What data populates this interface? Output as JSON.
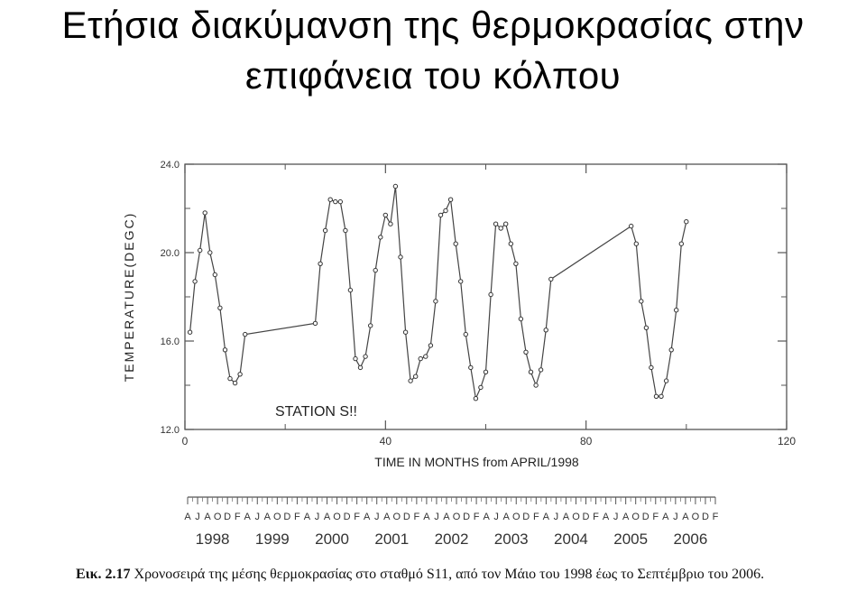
{
  "title": {
    "line1": "Ετήσια διακύμανση της θερμοκρασίας στην",
    "line2": "επιφάνεια του κόλπου"
  },
  "chart_data": {
    "type": "line",
    "annotation": "STATION S!!",
    "xlabel": "TIME IN MONTHS from APRIL/1998",
    "ylabel": "TEMPERATURE(DEGC)",
    "xlim": [
      0,
      120
    ],
    "ylim": [
      12,
      24
    ],
    "x_ticks": [
      "0",
      "40",
      "80",
      "120"
    ],
    "y_ticks": [
      "12.0",
      "16.0",
      "20.0",
      "24.0"
    ],
    "grid": false,
    "points": [
      [
        1,
        16.4
      ],
      [
        2,
        18.7
      ],
      [
        3,
        20.1
      ],
      [
        4,
        21.8
      ],
      [
        5,
        20.0
      ],
      [
        6,
        19.0
      ],
      [
        7,
        17.5
      ],
      [
        8,
        15.6
      ],
      [
        9,
        14.3
      ],
      [
        10,
        14.1
      ],
      [
        11,
        14.5
      ],
      [
        12,
        16.3
      ],
      [
        26,
        16.8
      ],
      [
        27,
        19.5
      ],
      [
        28,
        21.0
      ],
      [
        29,
        22.4
      ],
      [
        30,
        22.3
      ],
      [
        31,
        22.3
      ],
      [
        32,
        21.0
      ],
      [
        33,
        18.3
      ],
      [
        34,
        15.2
      ],
      [
        35,
        14.8
      ],
      [
        36,
        15.3
      ],
      [
        37,
        16.7
      ],
      [
        38,
        19.2
      ],
      [
        39,
        20.7
      ],
      [
        40,
        21.7
      ],
      [
        41,
        21.3
      ],
      [
        42,
        23.0
      ],
      [
        43,
        19.8
      ],
      [
        44,
        16.4
      ],
      [
        45,
        14.2
      ],
      [
        46,
        14.4
      ],
      [
        47,
        15.2
      ],
      [
        48,
        15.3
      ],
      [
        49,
        15.8
      ],
      [
        50,
        17.8
      ],
      [
        51,
        21.7
      ],
      [
        52,
        21.9
      ],
      [
        53,
        22.4
      ],
      [
        54,
        20.4
      ],
      [
        55,
        18.7
      ],
      [
        56,
        16.3
      ],
      [
        57,
        14.8
      ],
      [
        58,
        13.4
      ],
      [
        59,
        13.9
      ],
      [
        60,
        14.6
      ],
      [
        61,
        18.1
      ],
      [
        62,
        21.3
      ],
      [
        63,
        21.1
      ],
      [
        64,
        21.3
      ],
      [
        65,
        20.4
      ],
      [
        66,
        19.5
      ],
      [
        67,
        17.0
      ],
      [
        68,
        15.5
      ],
      [
        69,
        14.6
      ],
      [
        70,
        14.0
      ],
      [
        71,
        14.7
      ],
      [
        72,
        16.5
      ],
      [
        73,
        18.8
      ],
      [
        89,
        21.2
      ],
      [
        90,
        20.4
      ],
      [
        91,
        17.8
      ],
      [
        92,
        16.6
      ],
      [
        93,
        14.8
      ],
      [
        94,
        13.5
      ],
      [
        95,
        13.5
      ],
      [
        96,
        14.2
      ],
      [
        97,
        15.6
      ],
      [
        98,
        17.4
      ],
      [
        99,
        20.4
      ],
      [
        100,
        21.4
      ]
    ]
  },
  "timeline": {
    "months": [
      "A",
      "J",
      "A",
      "O",
      "D",
      "F",
      "A",
      "J",
      "A",
      "O",
      "D",
      "F",
      "A",
      "J",
      "A",
      "O",
      "D",
      "F",
      "A",
      "J",
      "A",
      "O",
      "D",
      "F",
      "A",
      "J",
      "A",
      "O",
      "D",
      "F",
      "A",
      "J",
      "A",
      "O",
      "D",
      "F",
      "A",
      "J",
      "A",
      "O",
      "D",
      "F",
      "A",
      "J",
      "A",
      "O",
      "D",
      "F",
      "A",
      "J",
      "A",
      "O",
      "D",
      "F"
    ],
    "years": [
      "1998",
      "1999",
      "2000",
      "2001",
      "2002",
      "2003",
      "2004",
      "2005",
      "2006"
    ]
  },
  "caption": {
    "label": "Εικ. 2.17",
    "text": "Χρονοσειρά της μέσης θερμοκρασίας στο σταθμό S11, από τον Μάιο του 1998 έως το Σεπτέμβριο του 2006."
  }
}
